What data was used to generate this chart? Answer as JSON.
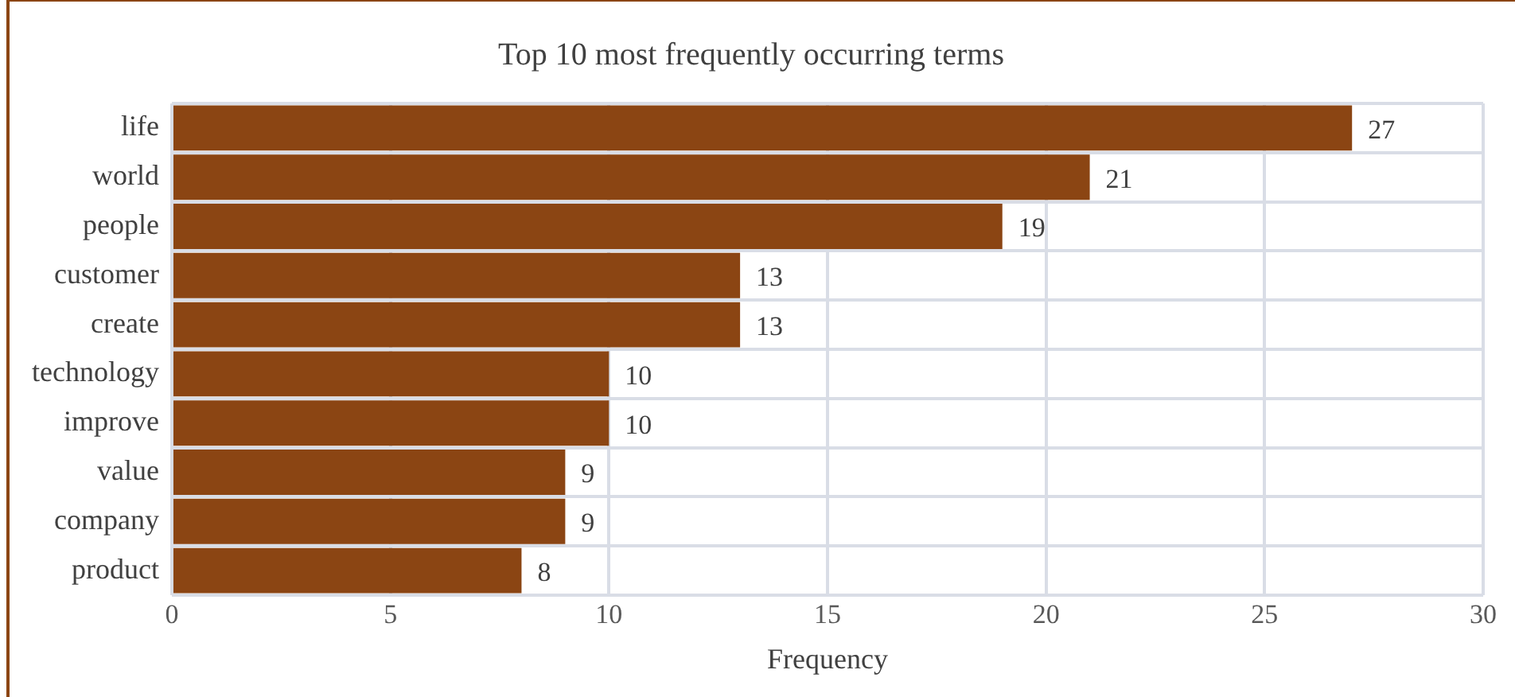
{
  "chart_data": {
    "type": "bar",
    "orientation": "horizontal",
    "title": "Top 10 most frequently occurring terms",
    "xlabel": "Frequency",
    "categories": [
      "life",
      "world",
      "people",
      "customer",
      "create",
      "technology",
      "improve",
      "value",
      "company",
      "product"
    ],
    "values": [
      27,
      21,
      19,
      13,
      13,
      10,
      10,
      9,
      9,
      8
    ],
    "color": "#8b4513",
    "xlim": [
      0,
      30
    ],
    "xticks": [
      0,
      5,
      10,
      15,
      20,
      25,
      30
    ],
    "grid": true,
    "data_labels": true,
    "legend": false
  }
}
